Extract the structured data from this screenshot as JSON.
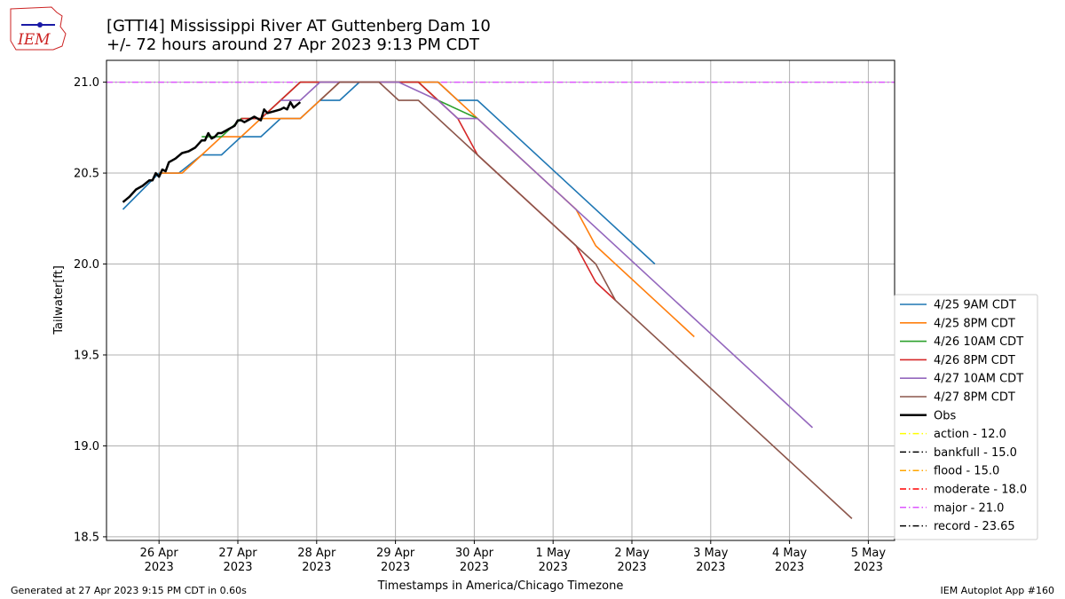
{
  "logo": {
    "text": "IEM"
  },
  "header": {
    "title_line1": "[GTTI4] Mississippi River  AT Guttenberg Dam 10",
    "title_line2": "+/- 72 hours around 27 Apr 2023 9:13 PM CDT"
  },
  "footer": {
    "left": "Generated at 27 Apr 2023 9:15 PM CDT in 0.60s",
    "right": "IEM Autoplot App #160"
  },
  "chart_data": {
    "type": "line",
    "title": "[GTTI4] Mississippi River  AT Guttenberg Dam 10",
    "subtitle": "+/- 72 hours around 27 Apr 2023 9:13 PM CDT",
    "xlabel": "Timestamps in America/Chicago Timezone",
    "ylabel": "Tailwater[ft]",
    "xlim": [
      "2023-04-25 08:00",
      "2023-05-05 08:00"
    ],
    "ylim": [
      18.48,
      21.12
    ],
    "grid": true,
    "legend_position": "right-bottom",
    "x_ticks": [
      {
        "t": "2023-04-26 00:00",
        "line1": "26 Apr",
        "line2": "2023"
      },
      {
        "t": "2023-04-27 00:00",
        "line1": "27 Apr",
        "line2": "2023"
      },
      {
        "t": "2023-04-28 00:00",
        "line1": "28 Apr",
        "line2": "2023"
      },
      {
        "t": "2023-04-29 00:00",
        "line1": "29 Apr",
        "line2": "2023"
      },
      {
        "t": "2023-04-30 00:00",
        "line1": "30 Apr",
        "line2": "2023"
      },
      {
        "t": "2023-05-01 00:00",
        "line1": "1 May",
        "line2": "2023"
      },
      {
        "t": "2023-05-02 00:00",
        "line1": "2 May",
        "line2": "2023"
      },
      {
        "t": "2023-05-03 00:00",
        "line1": "3 May",
        "line2": "2023"
      },
      {
        "t": "2023-05-04 00:00",
        "line1": "4 May",
        "line2": "2023"
      },
      {
        "t": "2023-05-05 00:00",
        "line1": "5 May",
        "line2": "2023"
      }
    ],
    "y_ticks": [
      "18.5",
      "19.0",
      "19.5",
      "20.0",
      "20.5",
      "21.0"
    ],
    "series": [
      {
        "name": "4/25 9AM CDT",
        "color": "#1f77b4",
        "style": "solid",
        "points": [
          [
            "2023-04-25 13:00",
            20.3
          ],
          [
            "2023-04-26 00:00",
            20.5
          ],
          [
            "2023-04-26 06:00",
            20.5
          ],
          [
            "2023-04-26 13:00",
            20.6
          ],
          [
            "2023-04-26 19:00",
            20.6
          ],
          [
            "2023-04-27 01:00",
            20.7
          ],
          [
            "2023-04-27 07:00",
            20.7
          ],
          [
            "2023-04-27 13:00",
            20.8
          ],
          [
            "2023-04-27 19:00",
            20.8
          ],
          [
            "2023-04-28 01:00",
            20.9
          ],
          [
            "2023-04-28 07:00",
            20.9
          ],
          [
            "2023-04-28 13:00",
            21.0
          ],
          [
            "2023-04-29 13:00",
            21.0
          ],
          [
            "2023-04-29 19:00",
            20.9
          ],
          [
            "2023-04-30 01:00",
            20.9
          ],
          [
            "2023-05-02 07:00",
            20.0
          ]
        ]
      },
      {
        "name": "4/25 8PM CDT",
        "color": "#ff7f0e",
        "style": "solid",
        "points": [
          [
            "2023-04-26 00:00",
            20.5
          ],
          [
            "2023-04-26 07:00",
            20.5
          ],
          [
            "2023-04-26 19:00",
            20.7
          ],
          [
            "2023-04-27 01:00",
            20.7
          ],
          [
            "2023-04-27 07:00",
            20.8
          ],
          [
            "2023-04-27 19:00",
            20.8
          ],
          [
            "2023-04-28 01:00",
            20.9
          ],
          [
            "2023-04-28 07:00",
            21.0
          ],
          [
            "2023-04-29 13:00",
            21.0
          ],
          [
            "2023-04-29 19:00",
            20.9
          ],
          [
            "2023-04-30 01:00",
            20.8
          ],
          [
            "2023-05-01 07:00",
            20.3
          ],
          [
            "2023-05-01 13:00",
            20.1
          ],
          [
            "2023-05-02 19:00",
            19.6
          ]
        ]
      },
      {
        "name": "4/26 10AM CDT",
        "color": "#2ca02c",
        "style": "solid",
        "points": [
          [
            "2023-04-26 13:00",
            20.7
          ],
          [
            "2023-04-26 19:00",
            20.7
          ],
          [
            "2023-04-27 01:00",
            20.8
          ],
          [
            "2023-04-27 07:00",
            20.8
          ],
          [
            "2023-04-27 13:00",
            20.9
          ],
          [
            "2023-04-27 19:00",
            21.0
          ],
          [
            "2023-04-29 07:00",
            21.0
          ],
          [
            "2023-04-29 13:00",
            20.9
          ],
          [
            "2023-04-30 01:00",
            20.8
          ]
        ]
      },
      {
        "name": "4/26 8PM CDT",
        "color": "#d62728",
        "style": "solid",
        "points": [
          [
            "2023-04-27 01:00",
            20.8
          ],
          [
            "2023-04-27 07:00",
            20.8
          ],
          [
            "2023-04-27 13:00",
            20.9
          ],
          [
            "2023-04-27 19:00",
            21.0
          ],
          [
            "2023-04-29 07:00",
            21.0
          ],
          [
            "2023-04-29 19:00",
            20.8
          ],
          [
            "2023-04-30 01:00",
            20.6
          ],
          [
            "2023-05-01 07:00",
            20.1
          ],
          [
            "2023-05-01 13:00",
            19.9
          ],
          [
            "2023-05-01 19:00",
            19.8
          ]
        ]
      },
      {
        "name": "4/27 10AM CDT",
        "color": "#9467bd",
        "style": "solid",
        "points": [
          [
            "2023-04-27 13:00",
            20.9
          ],
          [
            "2023-04-27 19:00",
            20.9
          ],
          [
            "2023-04-28 01:00",
            21.0
          ],
          [
            "2023-04-29 01:00",
            21.0
          ],
          [
            "2023-04-29 13:00",
            20.9
          ],
          [
            "2023-04-29 19:00",
            20.8
          ],
          [
            "2023-04-30 01:00",
            20.8
          ],
          [
            "2023-05-04 07:00",
            19.1
          ]
        ]
      },
      {
        "name": "4/27 8PM CDT",
        "color": "#8c564b",
        "style": "solid",
        "points": [
          [
            "2023-04-28 01:00",
            20.9
          ],
          [
            "2023-04-28 07:00",
            21.0
          ],
          [
            "2023-04-28 19:00",
            21.0
          ],
          [
            "2023-04-29 01:00",
            20.9
          ],
          [
            "2023-04-29 07:00",
            20.9
          ],
          [
            "2023-04-30 01:00",
            20.6
          ],
          [
            "2023-05-01 07:00",
            20.1
          ],
          [
            "2023-05-01 13:00",
            20.0
          ],
          [
            "2023-05-01 19:00",
            19.8
          ],
          [
            "2023-05-04 19:00",
            18.6
          ]
        ]
      },
      {
        "name": "Obs",
        "color": "#000000",
        "style": "solid",
        "width": 2.5,
        "points": [
          [
            "2023-04-25 13:00",
            20.34
          ],
          [
            "2023-04-25 15:00",
            20.37
          ],
          [
            "2023-04-25 17:00",
            20.41
          ],
          [
            "2023-04-25 19:00",
            20.43
          ],
          [
            "2023-04-25 21:00",
            20.46
          ],
          [
            "2023-04-25 22:00",
            20.46
          ],
          [
            "2023-04-25 23:00",
            20.5
          ],
          [
            "2023-04-26 00:00",
            20.48
          ],
          [
            "2023-04-26 01:00",
            20.52
          ],
          [
            "2023-04-26 02:00",
            20.51
          ],
          [
            "2023-04-26 03:00",
            20.56
          ],
          [
            "2023-04-26 05:00",
            20.58
          ],
          [
            "2023-04-26 07:00",
            20.61
          ],
          [
            "2023-04-26 09:00",
            20.62
          ],
          [
            "2023-04-26 11:00",
            20.64
          ],
          [
            "2023-04-26 13:00",
            20.68
          ],
          [
            "2023-04-26 14:00",
            20.68
          ],
          [
            "2023-04-26 15:00",
            20.72
          ],
          [
            "2023-04-26 16:00",
            20.69
          ],
          [
            "2023-04-26 17:00",
            20.7
          ],
          [
            "2023-04-26 18:00",
            20.72
          ],
          [
            "2023-04-26 19:00",
            20.72
          ],
          [
            "2023-04-26 21:00",
            20.74
          ],
          [
            "2023-04-26 23:00",
            20.76
          ],
          [
            "2023-04-27 00:00",
            20.79
          ],
          [
            "2023-04-27 01:00",
            20.79
          ],
          [
            "2023-04-27 02:00",
            20.78
          ],
          [
            "2023-04-27 04:00",
            20.8
          ],
          [
            "2023-04-27 05:00",
            20.81
          ],
          [
            "2023-04-27 06:00",
            20.8
          ],
          [
            "2023-04-27 07:00",
            20.79
          ],
          [
            "2023-04-27 08:00",
            20.85
          ],
          [
            "2023-04-27 09:00",
            20.83
          ],
          [
            "2023-04-27 11:00",
            20.84
          ],
          [
            "2023-04-27 13:00",
            20.85
          ],
          [
            "2023-04-27 14:00",
            20.86
          ],
          [
            "2023-04-27 15:00",
            20.85
          ],
          [
            "2023-04-27 16:00",
            20.89
          ],
          [
            "2023-04-27 17:00",
            20.86
          ],
          [
            "2023-04-27 19:00",
            20.89
          ]
        ]
      }
    ],
    "thresholds": [
      {
        "name": "action - 12.0",
        "value": 12.0,
        "color": "#ffff00",
        "style": "dashdot"
      },
      {
        "name": "bankfull - 15.0",
        "value": 15.0,
        "color": "#000000",
        "style": "dashdot"
      },
      {
        "name": "flood - 15.0",
        "value": 15.0,
        "color": "#ffa500",
        "style": "dashdot"
      },
      {
        "name": "moderate - 18.0",
        "value": 18.0,
        "color": "#ff0000",
        "style": "dashdot"
      },
      {
        "name": "major - 21.0",
        "value": 21.0,
        "color": "#dd55ff",
        "style": "dashdot"
      },
      {
        "name": "record - 23.65",
        "value": 23.65,
        "color": "#000000",
        "style": "dashdot"
      }
    ]
  }
}
